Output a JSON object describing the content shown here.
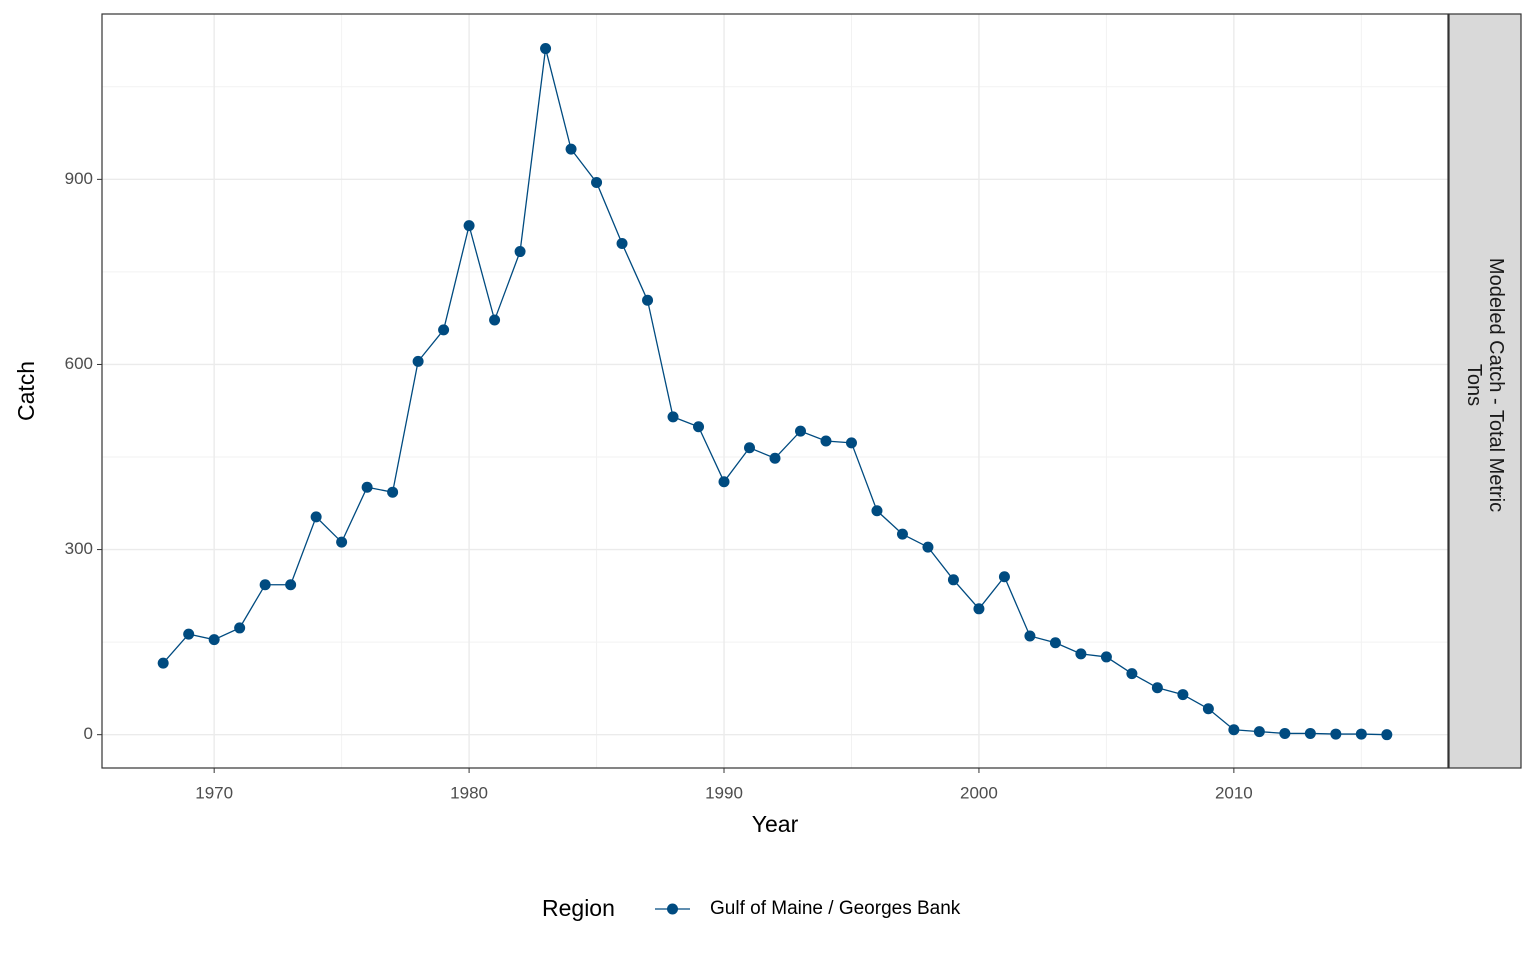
{
  "chart_data": {
    "type": "line",
    "x_label": "Year",
    "y_label": "Catch",
    "facet_label": "Modeled Catch - Total Metric Tons",
    "legend_title": "Region",
    "x": [
      1968,
      1969,
      1970,
      1971,
      1972,
      1973,
      1974,
      1975,
      1976,
      1977,
      1978,
      1979,
      1980,
      1981,
      1982,
      1983,
      1984,
      1985,
      1986,
      1987,
      1988,
      1989,
      1990,
      1991,
      1992,
      1993,
      1994,
      1995,
      1996,
      1997,
      1998,
      1999,
      2000,
      2001,
      2002,
      2003,
      2004,
      2005,
      2006,
      2007,
      2008,
      2009,
      2010,
      2011,
      2012,
      2013,
      2014,
      2015,
      2016
    ],
    "series": [
      {
        "name": "Gulf of Maine / Georges Bank",
        "color": "#004b80",
        "values": [
          116,
          163,
          154,
          173,
          243,
          243,
          353,
          312,
          401,
          393,
          605,
          656,
          825,
          672,
          783,
          1112,
          949,
          895,
          796,
          704,
          515,
          499,
          410,
          465,
          448,
          492,
          476,
          473,
          363,
          325,
          304,
          251,
          204,
          256,
          160,
          149,
          131,
          126,
          99,
          76,
          65,
          42,
          8,
          5,
          2,
          2,
          1,
          1,
          0
        ]
      }
    ],
    "xlim": [
      1965.6,
      2018.4
    ],
    "xticks": [
      1970,
      1980,
      1990,
      2000,
      2010
    ],
    "ylim": [
      -54,
      1168
    ],
    "yticks": [
      0,
      300,
      600,
      900
    ],
    "grid": true,
    "legend_position": "bottom"
  }
}
